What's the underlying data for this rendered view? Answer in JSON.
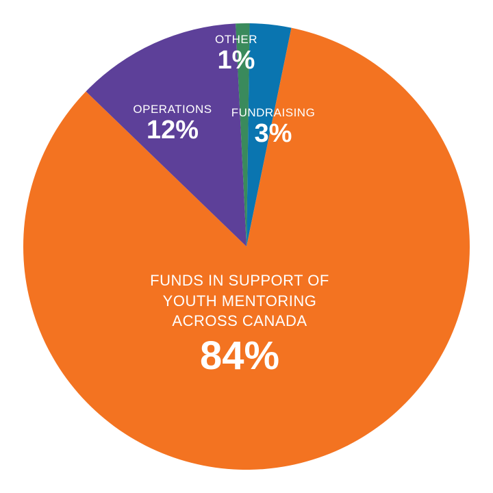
{
  "chart_data": {
    "type": "pie",
    "slices": [
      {
        "label": "FUNDRAISING",
        "value": 3,
        "display": "3%",
        "color": "#0a75b0"
      },
      {
        "label": "FUNDS IN SUPPORT OF YOUTH MENTORING ACROSS CANADA",
        "value": 84,
        "display": "84%",
        "color": "#f37321"
      },
      {
        "label": "OPERATIONS",
        "value": 12,
        "display": "12%",
        "color": "#5d4099"
      },
      {
        "label": "OTHER",
        "value": 1,
        "display": "1%",
        "color": "#3a8a5c"
      }
    ]
  }
}
